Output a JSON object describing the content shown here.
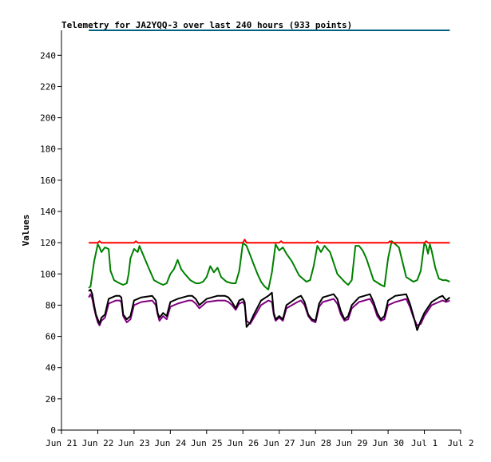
{
  "chart_data": {
    "type": "line",
    "title": "Telemetry for JA2YQQ-3 over last 240 hours (933 points)",
    "xlabel": "",
    "ylabel": "Values",
    "ylim": [
      0,
      256
    ],
    "yticks": [
      0,
      20,
      40,
      60,
      80,
      100,
      120,
      140,
      160,
      180,
      200,
      220,
      240
    ],
    "x_tick_labels": [
      "Jun 21",
      "Jun 22",
      "Jun 23",
      "Jun 24",
      "Jun 25",
      "Jun 26",
      "Jun 27",
      "Jun 28",
      "Jun 29",
      "Jun 30",
      "Jul 1",
      "Jul 2"
    ],
    "xlim_days": [
      0,
      11
    ],
    "grid": false,
    "legend": "none",
    "series": [
      {
        "color": "#008000",
        "x": [
          0.75,
          0.8,
          0.9,
          1.0,
          1.05,
          1.1,
          1.2,
          1.3,
          1.35,
          1.45,
          1.6,
          1.7,
          1.8,
          1.85,
          1.9,
          2.0,
          2.1,
          2.15,
          2.2,
          2.4,
          2.55,
          2.7,
          2.8,
          2.9,
          3.0,
          3.1,
          3.2,
          3.3,
          3.4,
          3.55,
          3.7,
          3.8,
          3.9,
          4.0,
          4.1,
          4.2,
          4.3,
          4.4,
          4.55,
          4.7,
          4.8,
          4.9,
          5.0,
          5.1,
          5.2,
          5.3,
          5.4,
          5.5,
          5.6,
          5.7,
          5.8,
          5.9,
          6.0,
          6.1,
          6.2,
          6.35,
          6.55,
          6.75,
          6.85,
          6.95,
          7.05,
          7.15,
          7.25,
          7.4,
          7.6,
          7.8,
          7.9,
          8.0,
          8.1,
          8.2,
          8.3,
          8.4,
          8.6,
          8.8,
          8.9,
          9.0,
          9.1,
          9.2,
          9.3,
          9.5,
          9.7,
          9.8,
          9.9,
          10.0,
          10.05,
          10.1,
          10.15,
          10.2,
          10.3,
          10.4,
          10.5,
          10.6,
          10.7
        ],
        "values": [
          91,
          92,
          108,
          119,
          117,
          114,
          117,
          116,
          102,
          96,
          94,
          93,
          94,
          100,
          110,
          116,
          114,
          118,
          115,
          104,
          96,
          94,
          93,
          94,
          100,
          103,
          109,
          103,
          100,
          96,
          94,
          94,
          95,
          98,
          105,
          101,
          104,
          98,
          95,
          94,
          94,
          102,
          120,
          118,
          112,
          106,
          100,
          95,
          92,
          90,
          101,
          119,
          115,
          117,
          113,
          108,
          99,
          95,
          96,
          105,
          118,
          114,
          118,
          114,
          100,
          95,
          93,
          96,
          118,
          118,
          115,
          110,
          96,
          93,
          92,
          110,
          121,
          119,
          117,
          98,
          95,
          96,
          102,
          120,
          118,
          113,
          119,
          115,
          104,
          97,
          96,
          96,
          95
        ]
      },
      {
        "color": "#ff0000",
        "x": [
          0.75,
          1.0,
          1.05,
          1.1,
          2.0,
          2.05,
          2.1,
          4.6,
          5.0,
          5.05,
          5.1,
          6.0,
          6.05,
          6.1,
          7.0,
          7.05,
          7.1,
          9.0,
          9.05,
          9.1,
          10.0,
          10.05,
          10.1,
          10.7
        ],
        "values": [
          120,
          120,
          121,
          120,
          120,
          121,
          120,
          120,
          120,
          122,
          120,
          120,
          121,
          120,
          120,
          121,
          120,
          120,
          121,
          120,
          120,
          121,
          120,
          120
        ]
      },
      {
        "color": "#800080",
        "x": [
          0.75,
          0.8,
          0.85,
          0.9,
          0.95,
          1.0,
          1.05,
          1.1,
          1.2,
          1.3,
          1.5,
          1.6,
          1.65,
          1.7,
          1.8,
          1.85,
          1.9,
          2.0,
          2.2,
          2.5,
          2.6,
          2.65,
          2.7,
          2.8,
          2.9,
          3.0,
          3.2,
          3.5,
          3.6,
          3.7,
          3.8,
          4.0,
          4.3,
          4.5,
          4.6,
          4.7,
          4.8,
          4.9,
          5.0,
          5.05,
          5.1,
          5.2,
          5.3,
          5.5,
          5.7,
          5.8,
          5.85,
          5.9,
          6.0,
          6.1,
          6.2,
          6.5,
          6.6,
          6.7,
          6.8,
          6.9,
          7.0,
          7.1,
          7.2,
          7.5,
          7.6,
          7.7,
          7.8,
          7.9,
          8.0,
          8.2,
          8.5,
          8.6,
          8.7,
          8.8,
          8.9,
          9.0,
          9.2,
          9.5,
          9.6,
          9.7,
          9.8,
          9.9,
          10.0,
          10.2,
          10.4,
          10.5,
          10.6,
          10.7
        ],
        "values": [
          85,
          87,
          84,
          78,
          73,
          69,
          67,
          70,
          72,
          81,
          83,
          83,
          82,
          73,
          69,
          70,
          71,
          80,
          82,
          83,
          80,
          74,
          70,
          73,
          71,
          79,
          81,
          83,
          83,
          81,
          78,
          82,
          83,
          83,
          82,
          80,
          77,
          81,
          82,
          80,
          70,
          68,
          72,
          80,
          83,
          82,
          74,
          70,
          72,
          70,
          78,
          82,
          83,
          80,
          73,
          70,
          69,
          79,
          82,
          84,
          81,
          74,
          70,
          71,
          78,
          82,
          84,
          80,
          73,
          70,
          71,
          80,
          82,
          84,
          79,
          72,
          67,
          68,
          73,
          80,
          82,
          83,
          82,
          83
        ]
      },
      {
        "color": "#000000",
        "x": [
          0.75,
          0.8,
          0.85,
          0.9,
          0.95,
          1.0,
          1.05,
          1.1,
          1.2,
          1.3,
          1.5,
          1.6,
          1.65,
          1.7,
          1.8,
          1.85,
          1.9,
          2.0,
          2.2,
          2.5,
          2.6,
          2.65,
          2.7,
          2.8,
          2.9,
          3.0,
          3.2,
          3.5,
          3.6,
          3.7,
          3.8,
          4.0,
          4.3,
          4.5,
          4.6,
          4.7,
          4.8,
          4.9,
          5.0,
          5.05,
          5.1,
          5.2,
          5.3,
          5.5,
          5.7,
          5.8,
          5.85,
          5.9,
          6.0,
          6.1,
          6.2,
          6.5,
          6.6,
          6.7,
          6.8,
          6.9,
          7.0,
          7.1,
          7.2,
          7.5,
          7.6,
          7.7,
          7.8,
          7.9,
          8.0,
          8.2,
          8.5,
          8.6,
          8.7,
          8.8,
          8.9,
          9.0,
          9.2,
          9.5,
          9.6,
          9.7,
          9.8,
          9.9,
          10.0,
          10.2,
          10.4,
          10.5,
          10.6,
          10.7
        ],
        "values": [
          89,
          90,
          87,
          80,
          74,
          71,
          68,
          72,
          74,
          84,
          86,
          86,
          85,
          74,
          71,
          72,
          73,
          83,
          85,
          86,
          83,
          75,
          72,
          75,
          73,
          82,
          84,
          86,
          86,
          84,
          80,
          84,
          86,
          86,
          85,
          82,
          78,
          83,
          84,
          82,
          66,
          69,
          74,
          83,
          86,
          88,
          75,
          71,
          73,
          71,
          80,
          85,
          86,
          82,
          74,
          71,
          70,
          81,
          85,
          87,
          84,
          76,
          71,
          73,
          80,
          85,
          87,
          82,
          75,
          71,
          73,
          83,
          86,
          87,
          81,
          73,
          64,
          70,
          75,
          82,
          85,
          86,
          83,
          85
        ]
      },
      {
        "color": "#006080",
        "x": [
          0.75,
          10.7
        ],
        "values": [
          256,
          256
        ]
      }
    ]
  }
}
